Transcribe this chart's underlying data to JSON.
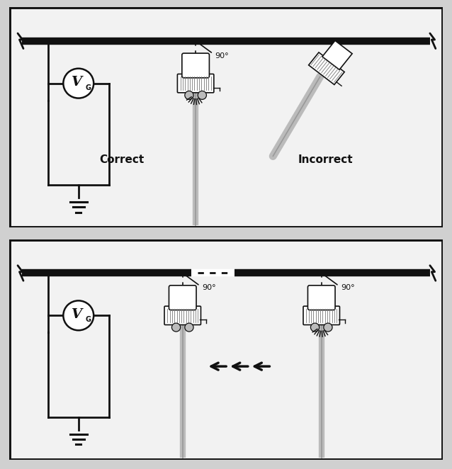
{
  "bg_color": "#d0d0d0",
  "panel_bg": "#f2f2f2",
  "line_color": "#111111",
  "gray_color": "#777777",
  "light_gray": "#bbbbbb",
  "mid_gray": "#999999",
  "correct_label": "Correct",
  "incorrect_label": "Incorrect",
  "angle_label": "90°"
}
